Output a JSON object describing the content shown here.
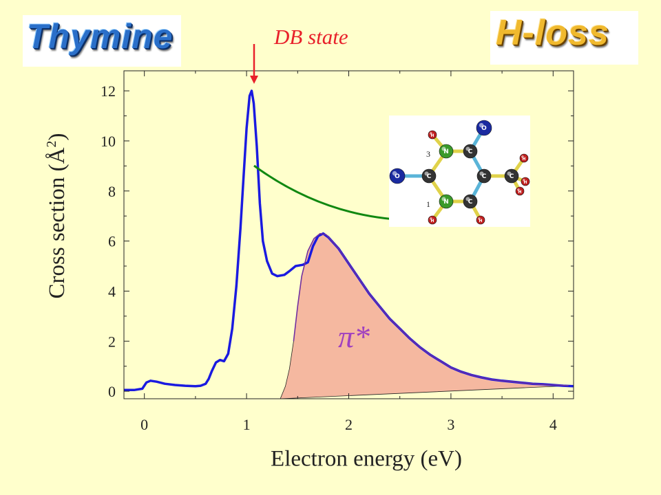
{
  "logos": {
    "left": "Thymine",
    "right": "H-loss"
  },
  "annotation": "DB state",
  "pi_label": "π*",
  "colors": {
    "background": "#ffffcc",
    "measured": "#1a1ae0",
    "fit_fill": "#f5b8a0",
    "fit_line": "#7030a0",
    "arrow_red": "#e8202a",
    "arrow_green": "#118811",
    "pi_label": "#a040c0"
  },
  "chart_data": {
    "type": "line",
    "xlabel": "Electron energy (eV)",
    "ylabel": "Cross section (Å",
    "ylabel_sup": "2",
    "ylabel_close": ")",
    "xlim": [
      -0.2,
      4.2
    ],
    "ylim": [
      -0.3,
      12.8
    ],
    "xticks": [
      0,
      1,
      2,
      3,
      4
    ],
    "yticks": [
      0,
      2,
      4,
      6,
      8,
      10,
      12
    ],
    "grid": false,
    "series": [
      {
        "values": [
          [
            -0.2,
            0.05
          ],
          [
            -0.1,
            0.05
          ],
          [
            -0.02,
            0.1
          ],
          [
            0.02,
            0.35
          ],
          [
            0.06,
            0.42
          ],
          [
            0.12,
            0.38
          ],
          [
            0.2,
            0.3
          ],
          [
            0.3,
            0.25
          ],
          [
            0.4,
            0.22
          ],
          [
            0.5,
            0.2
          ],
          [
            0.55,
            0.22
          ],
          [
            0.6,
            0.3
          ],
          [
            0.63,
            0.5
          ],
          [
            0.66,
            0.8
          ],
          [
            0.7,
            1.15
          ],
          [
            0.74,
            1.25
          ],
          [
            0.78,
            1.2
          ],
          [
            0.82,
            1.5
          ],
          [
            0.86,
            2.5
          ],
          [
            0.9,
            4.2
          ],
          [
            0.94,
            6.5
          ],
          [
            0.97,
            8.5
          ],
          [
            1.0,
            10.5
          ],
          [
            1.03,
            11.8
          ],
          [
            1.05,
            12.0
          ],
          [
            1.07,
            11.5
          ],
          [
            1.1,
            9.8
          ],
          [
            1.13,
            7.5
          ],
          [
            1.16,
            6.0
          ],
          [
            1.2,
            5.2
          ],
          [
            1.25,
            4.7
          ],
          [
            1.3,
            4.6
          ],
          [
            1.37,
            4.65
          ],
          [
            1.42,
            4.8
          ],
          [
            1.48,
            5.0
          ],
          [
            1.55,
            5.05
          ],
          [
            1.6,
            5.15
          ],
          [
            1.65,
            5.8
          ],
          [
            1.7,
            6.2
          ],
          [
            1.75,
            6.3
          ],
          [
            1.8,
            6.15
          ],
          [
            1.9,
            5.7
          ],
          [
            2.0,
            5.1
          ],
          [
            2.1,
            4.5
          ],
          [
            2.2,
            3.9
          ],
          [
            2.3,
            3.4
          ],
          [
            2.4,
            2.9
          ],
          [
            2.5,
            2.5
          ],
          [
            2.6,
            2.1
          ],
          [
            2.7,
            1.75
          ],
          [
            2.8,
            1.45
          ],
          [
            2.9,
            1.2
          ],
          [
            3.0,
            0.95
          ],
          [
            3.1,
            0.78
          ],
          [
            3.2,
            0.65
          ],
          [
            3.3,
            0.55
          ],
          [
            3.4,
            0.47
          ],
          [
            3.5,
            0.42
          ],
          [
            3.6,
            0.38
          ],
          [
            3.7,
            0.34
          ],
          [
            3.8,
            0.3
          ],
          [
            3.9,
            0.28
          ],
          [
            4.0,
            0.25
          ],
          [
            4.1,
            0.22
          ],
          [
            4.2,
            0.2
          ]
        ]
      },
      {
        "values": [
          [
            1.33,
            -0.3
          ],
          [
            1.38,
            0.2
          ],
          [
            1.42,
            0.9
          ],
          [
            1.46,
            2.0
          ],
          [
            1.5,
            3.4
          ],
          [
            1.54,
            4.6
          ],
          [
            1.6,
            5.6
          ],
          [
            1.66,
            6.1
          ],
          [
            1.72,
            6.3
          ],
          [
            1.78,
            6.25
          ],
          [
            1.9,
            5.7
          ],
          [
            2.0,
            5.1
          ],
          [
            2.1,
            4.5
          ],
          [
            2.2,
            3.9
          ],
          [
            2.3,
            3.4
          ],
          [
            2.4,
            2.9
          ],
          [
            2.5,
            2.5
          ],
          [
            2.6,
            2.1
          ],
          [
            2.7,
            1.75
          ],
          [
            2.8,
            1.45
          ],
          [
            2.9,
            1.2
          ],
          [
            3.0,
            0.95
          ],
          [
            3.1,
            0.78
          ],
          [
            3.2,
            0.65
          ],
          [
            3.3,
            0.55
          ],
          [
            3.4,
            0.47
          ],
          [
            3.5,
            0.42
          ],
          [
            3.6,
            0.38
          ],
          [
            3.7,
            0.34
          ],
          [
            3.8,
            0.3
          ],
          [
            3.9,
            0.27
          ],
          [
            4.0,
            0.25
          ],
          [
            4.1,
            0.23
          ],
          [
            4.15,
            0.22
          ]
        ]
      }
    ]
  },
  "molecule": {
    "atoms": [
      {
        "symbol": "N",
        "number": "3",
        "color": "#3a9a2a"
      },
      {
        "symbol": "C",
        "color": "#333333"
      },
      {
        "symbol": "C",
        "color": "#333333"
      },
      {
        "symbol": "C",
        "color": "#333333"
      },
      {
        "symbol": "C",
        "color": "#333333"
      },
      {
        "symbol": "N",
        "number": "1",
        "color": "#3a9a2a"
      },
      {
        "symbol": "C",
        "color": "#333333"
      },
      {
        "symbol": "O",
        "color": "#1a2aa0"
      },
      {
        "symbol": "O",
        "color": "#1a2aa0"
      },
      {
        "symbol": "H",
        "color": "#c02020"
      },
      {
        "symbol": "H",
        "color": "#c02020"
      },
      {
        "symbol": "H",
        "color": "#c02020"
      },
      {
        "symbol": "H",
        "color": "#c02020"
      },
      {
        "symbol": "H",
        "color": "#c02020"
      },
      {
        "symbol": "H",
        "color": "#c02020"
      }
    ]
  }
}
